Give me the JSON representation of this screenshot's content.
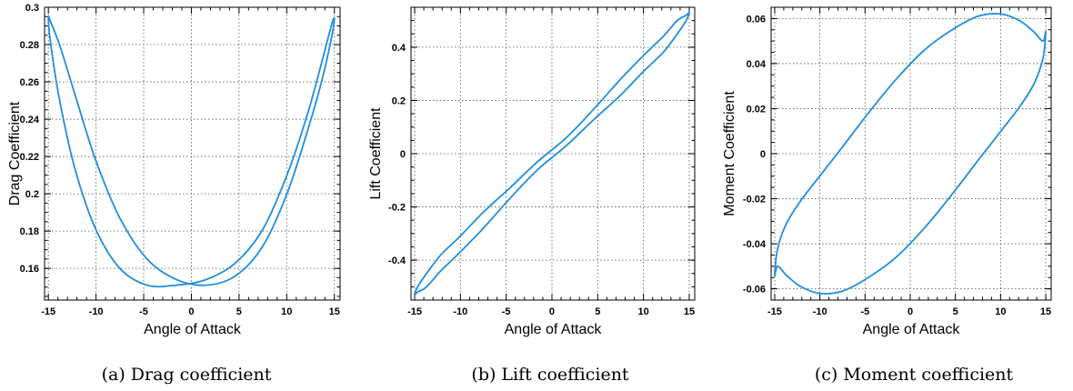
{
  "chart_data": [
    {
      "type": "line",
      "caption": "(a) Drag coefficient",
      "xlabel": "Angle of Attack",
      "ylabel": "Drag Coefficient",
      "xlim": [
        -15.4,
        15.6
      ],
      "ylim": [
        0.143,
        0.3
      ],
      "xticks": [
        -15,
        -10,
        -5,
        0,
        5,
        10,
        15
      ],
      "xtick_labels": [
        "-15",
        "-10",
        "-5",
        "0",
        "5",
        "10",
        "15"
      ],
      "yticks": [
        0.16,
        0.18,
        0.2,
        0.22,
        0.24,
        0.26,
        0.28,
        0.3
      ],
      "ytick_labels": [
        "0.16",
        "0.18",
        "0.2",
        "0.22",
        "0.24",
        "0.26",
        "0.28",
        "0.3"
      ],
      "grid": true,
      "series": [
        {
          "x": [
            -15,
            -14.67,
            -13.7,
            -12.14,
            -10.03,
            -7.5,
            -4.64,
            -1.57,
            1.57,
            4.64,
            7.5,
            10.03,
            12.14,
            13.7,
            14.67,
            15,
            14.67,
            13.7,
            12.14,
            10.03,
            7.5,
            4.64,
            1.57,
            -1.57,
            -4.64,
            -7.5,
            -10.03,
            -12.14,
            -13.7,
            -14.67,
            -15
          ],
          "y": [
            0.294,
            0.277,
            0.247,
            0.212,
            0.181,
            0.16,
            0.151,
            0.151,
            0.154,
            0.163,
            0.181,
            0.21,
            0.242,
            0.271,
            0.29,
            0.294,
            0.283,
            0.261,
            0.233,
            0.2,
            0.172,
            0.156,
            0.151,
            0.154,
            0.165,
            0.187,
            0.218,
            0.252,
            0.278,
            0.291,
            0.294
          ]
        }
      ]
    },
    {
      "type": "line",
      "caption": "(b) Lift coefficient",
      "xlabel": "Angle of Attack",
      "ylabel": "Lift Coefficient",
      "xlim": [
        -15.4,
        15.6
      ],
      "ylim": [
        -0.55,
        0.55
      ],
      "xticks": [
        -15,
        -10,
        -5,
        0,
        5,
        10,
        15
      ],
      "xtick_labels": [
        "-15",
        "-10",
        "-5",
        "0",
        "5",
        "10",
        "15"
      ],
      "yticks": [
        -0.4,
        -0.2,
        0,
        0.2,
        0.4
      ],
      "ytick_labels": [
        "-0.4",
        "-0.2",
        "0",
        "0.2",
        "0.4"
      ],
      "grid": true,
      "series": [
        {
          "x": [
            -15,
            -14.67,
            -13.7,
            -12.14,
            -10.03,
            -7.5,
            -4.64,
            -1.57,
            1.57,
            4.64,
            7.5,
            10.03,
            12.14,
            13.7,
            14.67,
            15,
            14.67,
            13.7,
            12.14,
            10.03,
            7.5,
            4.64,
            1.57,
            -1.57,
            -4.64,
            -7.5,
            -10.03,
            -12.14,
            -13.7,
            -14.67,
            -15
          ],
          "y": [
            -0.53,
            -0.5,
            -0.45,
            -0.38,
            -0.31,
            -0.22,
            -0.13,
            -0.03,
            0.06,
            0.17,
            0.28,
            0.37,
            0.44,
            0.5,
            0.52,
            0.53,
            0.5,
            0.45,
            0.38,
            0.31,
            0.22,
            0.13,
            0.03,
            -0.06,
            -0.17,
            -0.28,
            -0.37,
            -0.44,
            -0.5,
            -0.52,
            -0.53
          ]
        }
      ]
    },
    {
      "type": "line",
      "caption": "(c) Moment coefficient",
      "xlabel": "Angle of Attack",
      "ylabel": "Moment Coefficient",
      "xlim": [
        -15.4,
        15.6
      ],
      "ylim": [
        -0.065,
        0.065
      ],
      "xticks": [
        -15,
        -10,
        -5,
        0,
        5,
        10,
        15
      ],
      "xtick_labels": [
        "-15",
        "-10",
        "-5",
        "0",
        "5",
        "10",
        "15"
      ],
      "yticks": [
        -0.06,
        -0.04,
        -0.02,
        0,
        0.02,
        0.04,
        0.06
      ],
      "ytick_labels": [
        "-0.06",
        "-0.04",
        "-0.02",
        "0",
        "0.02",
        "0.04",
        "0.06"
      ],
      "grid": true,
      "series": [
        {
          "x": [
            -15,
            -14.67,
            -13.7,
            -12.14,
            -10.03,
            -7.5,
            -4.64,
            -1.57,
            1.57,
            4.64,
            7.5,
            10.03,
            12.14,
            13.7,
            14.67,
            15,
            14.67,
            13.7,
            12.14,
            10.03,
            7.5,
            4.64,
            1.57,
            -1.57,
            -4.64,
            -7.5,
            -10.03,
            -12.14,
            -13.7,
            -14.67,
            -15
          ],
          "y": [
            -0.054,
            -0.042,
            -0.031,
            -0.021,
            -0.01,
            0.003,
            0.018,
            0.033,
            0.046,
            0.055,
            0.061,
            0.062,
            0.059,
            0.054,
            0.05,
            0.054,
            0.042,
            0.031,
            0.021,
            0.01,
            -0.003,
            -0.018,
            -0.033,
            -0.046,
            -0.055,
            -0.061,
            -0.062,
            -0.059,
            -0.054,
            -0.05,
            -0.054
          ]
        }
      ]
    }
  ]
}
